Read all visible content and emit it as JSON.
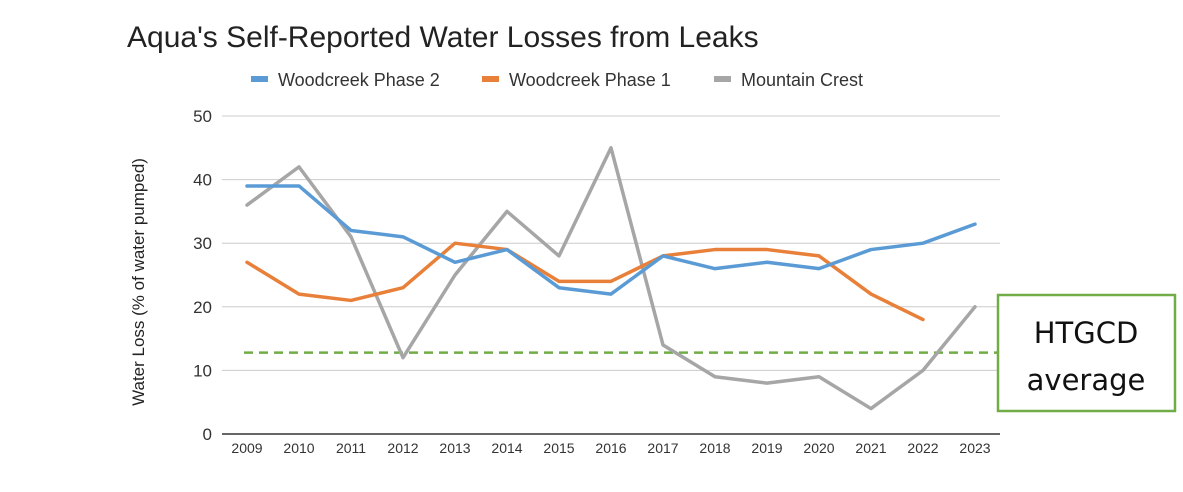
{
  "chart_data": {
    "type": "line",
    "title": "Aqua's Self-Reported Water Losses from Leaks",
    "ylabel": "Water Loss (% of water pumped)",
    "xlabel": "",
    "ylim": [
      0,
      50
    ],
    "yticks": [
      0,
      10,
      20,
      30,
      40,
      50
    ],
    "grid": true,
    "legend_position": "top",
    "categories": [
      "2009",
      "2010",
      "2011",
      "2012",
      "2013",
      "2014",
      "2015",
      "2016",
      "2017",
      "2018",
      "2019",
      "2020",
      "2021",
      "2022",
      "2023"
    ],
    "series": [
      {
        "name": "Woodcreek Phase 2",
        "color": "#5b9bd5",
        "values": [
          39,
          39,
          32,
          31,
          27,
          29,
          23,
          22,
          28,
          26,
          27,
          26,
          29,
          30,
          33
        ]
      },
      {
        "name": "Woodcreek Phase 1",
        "color": "#e8803a",
        "values": [
          27,
          22,
          21,
          23,
          30,
          29,
          24,
          24,
          28,
          29,
          29,
          28,
          22,
          18,
          null
        ]
      },
      {
        "name": "Mountain Crest",
        "color": "#a6a6a6",
        "values": [
          36,
          42,
          31,
          12,
          25,
          35,
          28,
          45,
          14,
          9,
          8,
          9,
          4,
          10,
          20
        ]
      }
    ],
    "reference_line": {
      "value": 12.8,
      "color": "#70ad47",
      "style": "dashed"
    },
    "annotation": {
      "lines": [
        "HTGCD",
        "average"
      ],
      "border_color": "#70ad47"
    }
  }
}
